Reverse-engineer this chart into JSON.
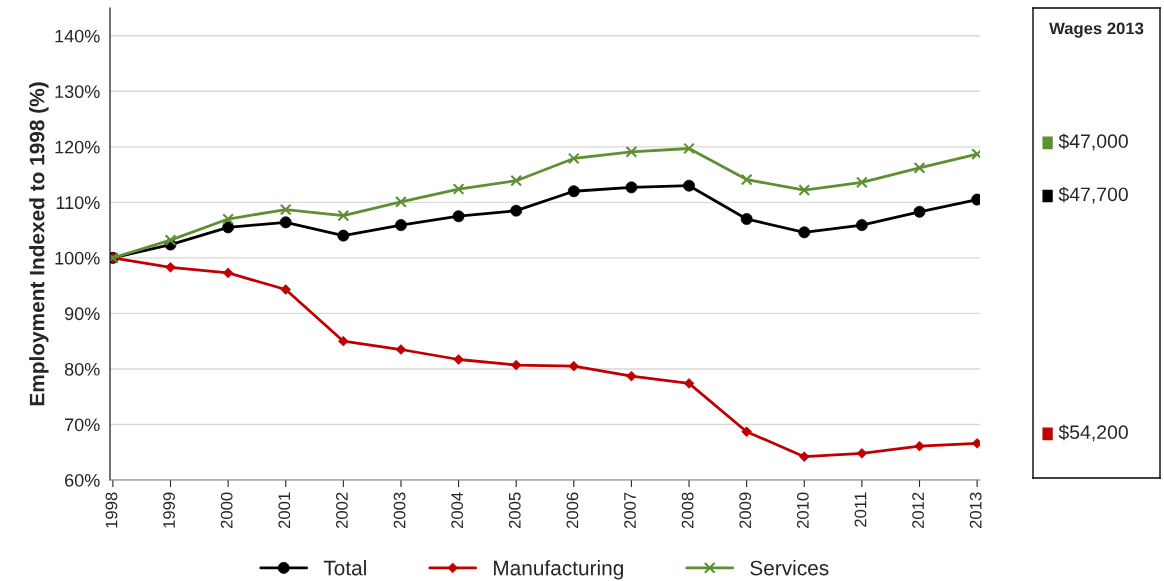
{
  "chart_data": {
    "type": "line",
    "ylabel": "Employment Indexed to 1998 (%)",
    "categories": [
      "1998",
      "1999",
      "2000",
      "2001",
      "2002",
      "2003",
      "2004",
      "2005",
      "2006",
      "2007",
      "2008",
      "2009",
      "2010",
      "2011",
      "2012",
      "2013"
    ],
    "series": [
      {
        "name": "Total",
        "color": "#000000",
        "marker": "circle",
        "values": [
          100,
          102.4,
          105.5,
          106.4,
          104,
          105.9,
          107.5,
          108.5,
          112,
          112.7,
          113,
          107,
          104.6,
          105.9,
          108.3,
          110.5
        ]
      },
      {
        "name": "Manufacturing",
        "color": "#c00000",
        "marker": "diamond",
        "values": [
          100,
          98.3,
          97.3,
          94.3,
          85,
          83.5,
          81.7,
          80.7,
          80.5,
          78.7,
          77.4,
          68.7,
          64.2,
          64.8,
          66.1,
          66.6
        ]
      },
      {
        "name": "Services",
        "color": "#5e8f32",
        "marker": "cross",
        "values": [
          100,
          103.2,
          107,
          108.7,
          107.6,
          110.1,
          112.4,
          113.9,
          117.9,
          119.1,
          119.7,
          114.1,
          112.2,
          113.6,
          116.2,
          118.7
        ]
      }
    ],
    "ylim": [
      60,
      145
    ],
    "yticks": [
      {
        "value": 60,
        "label": "60%"
      },
      {
        "value": 70,
        "label": "70%"
      },
      {
        "value": 80,
        "label": "80%"
      },
      {
        "value": 90,
        "label": "90%"
      },
      {
        "value": 100,
        "label": "100%"
      },
      {
        "value": 110,
        "label": "110%"
      },
      {
        "value": 120,
        "label": "120%"
      },
      {
        "value": 130,
        "label": "130%"
      },
      {
        "value": 140,
        "label": "140%"
      }
    ],
    "grid": "y",
    "legend": "bottom",
    "annotations": [
      "Wages 2013",
      "$47,000",
      "$47,700",
      "$54,200"
    ]
  }
}
